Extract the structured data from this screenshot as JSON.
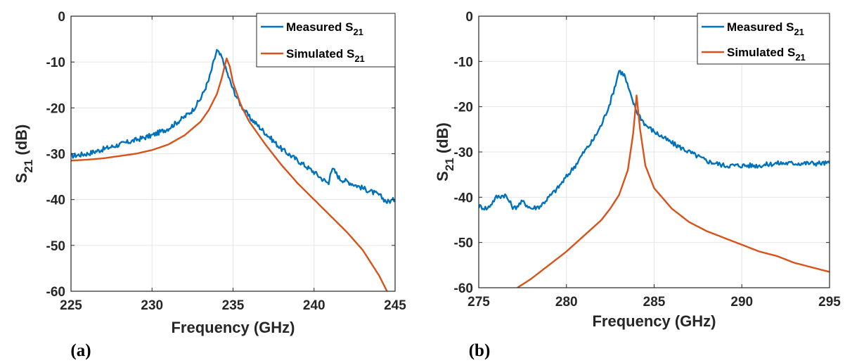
{
  "chart_data": [
    {
      "type": "line",
      "panel_label": "(a)",
      "xlabel": "Frequency (GHz)",
      "ylabel_main": "S",
      "ylabel_sub": "21",
      "ylabel_unit": " (dB)",
      "xlim": [
        225,
        245
      ],
      "ylim": [
        -60,
        0
      ],
      "xticks": [
        225,
        230,
        235,
        240,
        245
      ],
      "yticks": [
        0,
        -10,
        -20,
        -30,
        -40,
        -50,
        -60
      ],
      "grid": true,
      "legend_position": "top-right",
      "series": [
        {
          "name": "Measured S",
          "name_sub": "21",
          "color": "#0072BD",
          "points": [
            [
              225,
              -30.5
            ],
            [
              226,
              -30
            ],
            [
              227,
              -29
            ],
            [
              228,
              -28
            ],
            [
              229,
              -27
            ],
            [
              230,
              -26
            ],
            [
              231,
              -24.5
            ],
            [
              232,
              -22
            ],
            [
              232.5,
              -20.5
            ],
            [
              233,
              -18
            ],
            [
              233.5,
              -14
            ],
            [
              233.8,
              -10
            ],
            [
              234,
              -7.5
            ],
            [
              234.3,
              -9
            ],
            [
              234.6,
              -12
            ],
            [
              235,
              -16
            ],
            [
              235.5,
              -19.5
            ],
            [
              236,
              -22
            ],
            [
              237,
              -25.5
            ],
            [
              238,
              -29
            ],
            [
              239,
              -31.5
            ],
            [
              240,
              -34
            ],
            [
              240.5,
              -35.5
            ],
            [
              240.9,
              -36.5
            ],
            [
              241,
              -34
            ],
            [
              241.2,
              -33.5
            ],
            [
              241.6,
              -35.5
            ],
            [
              242,
              -36
            ],
            [
              243,
              -37.5
            ],
            [
              244,
              -39
            ],
            [
              244.5,
              -40.5
            ],
            [
              245,
              -40
            ]
          ]
        },
        {
          "name": "Simulated S",
          "name_sub": "21",
          "color": "#D95319",
          "points": [
            [
              225,
              -31.5
            ],
            [
              226,
              -31.3
            ],
            [
              227,
              -31
            ],
            [
              228,
              -30.5
            ],
            [
              229,
              -30
            ],
            [
              230,
              -29.2
            ],
            [
              231,
              -28
            ],
            [
              232,
              -26
            ],
            [
              233,
              -23
            ],
            [
              233.5,
              -20.5
            ],
            [
              234,
              -17
            ],
            [
              234.3,
              -13.5
            ],
            [
              234.6,
              -9.2
            ],
            [
              234.8,
              -11
            ],
            [
              235,
              -14.5
            ],
            [
              235.5,
              -19.5
            ],
            [
              236,
              -23
            ],
            [
              237,
              -28
            ],
            [
              238,
              -32.5
            ],
            [
              239,
              -36.5
            ],
            [
              240,
              -40
            ],
            [
              241,
              -43.5
            ],
            [
              242,
              -47
            ],
            [
              243,
              -51
            ],
            [
              244,
              -56.5
            ],
            [
              244.5,
              -60
            ]
          ]
        }
      ]
    },
    {
      "type": "line",
      "panel_label": "(b)",
      "xlabel": "Frequency (GHz)",
      "ylabel_main": "S",
      "ylabel_sub": "21",
      "ylabel_unit": " (dB)",
      "xlim": [
        275,
        295
      ],
      "ylim": [
        -60,
        0
      ],
      "xticks": [
        275,
        280,
        285,
        290,
        295
      ],
      "yticks": [
        0,
        -10,
        -20,
        -30,
        -40,
        -50,
        -60
      ],
      "grid": true,
      "legend_position": "top-right",
      "series": [
        {
          "name": "Measured S",
          "name_sub": "21",
          "color": "#0072BD",
          "points": [
            [
              275,
              -42
            ],
            [
              275.5,
              -42.5
            ],
            [
              276,
              -40
            ],
            [
              276.5,
              -39.5
            ],
            [
              277,
              -42.5
            ],
            [
              277.5,
              -41
            ],
            [
              278,
              -42.5
            ],
            [
              278.5,
              -42
            ],
            [
              279,
              -40
            ],
            [
              279.5,
              -38
            ],
            [
              280,
              -35.5
            ],
            [
              280.5,
              -33
            ],
            [
              281,
              -30
            ],
            [
              281.5,
              -27.5
            ],
            [
              282,
              -24
            ],
            [
              282.5,
              -19
            ],
            [
              282.8,
              -15
            ],
            [
              283,
              -12
            ],
            [
              283.3,
              -13
            ],
            [
              283.7,
              -18
            ],
            [
              284,
              -21
            ],
            [
              284.5,
              -24
            ],
            [
              285,
              -25.5
            ],
            [
              286,
              -28
            ],
            [
              287,
              -30
            ],
            [
              288,
              -32
            ],
            [
              289,
              -33
            ],
            [
              290,
              -33
            ],
            [
              291,
              -33
            ],
            [
              292,
              -32.5
            ],
            [
              293,
              -32.5
            ],
            [
              294,
              -32.5
            ],
            [
              295,
              -32.5
            ]
          ]
        },
        {
          "name": "Simulated S",
          "name_sub": "21",
          "color": "#D95319",
          "points": [
            [
              277.2,
              -60
            ],
            [
              278,
              -58
            ],
            [
              279,
              -55
            ],
            [
              280,
              -52
            ],
            [
              281,
              -48.5
            ],
            [
              282,
              -45
            ],
            [
              282.5,
              -42.5
            ],
            [
              283,
              -39.5
            ],
            [
              283.5,
              -34
            ],
            [
              283.8,
              -26
            ],
            [
              284,
              -17.5
            ],
            [
              284.2,
              -25
            ],
            [
              284.5,
              -33
            ],
            [
              285,
              -38
            ],
            [
              286,
              -42.5
            ],
            [
              287,
              -45.5
            ],
            [
              288,
              -47.5
            ],
            [
              289,
              -49
            ],
            [
              290,
              -50.5
            ],
            [
              291,
              -52
            ],
            [
              292,
              -53
            ],
            [
              293,
              -54.5
            ],
            [
              294,
              -55.5
            ],
            [
              295,
              -56.5
            ]
          ]
        }
      ]
    }
  ]
}
